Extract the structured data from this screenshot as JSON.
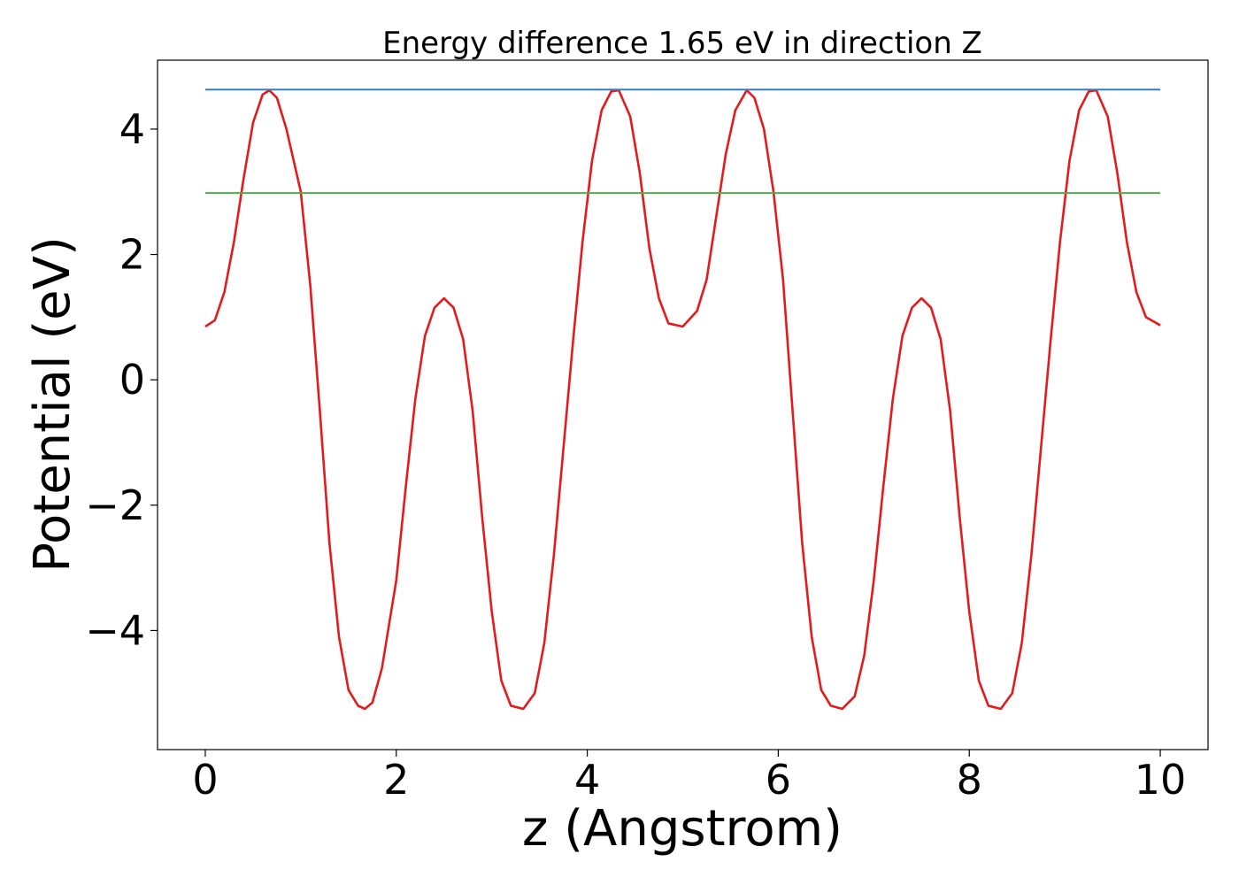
{
  "chart_data": {
    "type": "line",
    "title": "Energy difference 1.65 eV in direction Z",
    "xlabel": "z (Angstrom)",
    "ylabel": "Potential (eV)",
    "xlim": [
      -0.5,
      10.5
    ],
    "ylim": [
      -5.9,
      5.1
    ],
    "xticks": [
      0,
      2,
      4,
      6,
      8,
      10
    ],
    "xtick_labels": [
      "0",
      "2",
      "4",
      "6",
      "8",
      "10"
    ],
    "yticks": [
      4,
      2,
      0,
      -2,
      -4
    ],
    "ytick_labels": [
      "4",
      "2",
      "0",
      "−2",
      "−4"
    ],
    "grid": false,
    "legend": "none",
    "series": [
      {
        "color": "#e41a1c",
        "x": [
          0,
          0.1,
          0.2,
          0.3,
          0.4,
          0.5,
          0.6,
          0.67,
          0.75,
          0.85,
          1.0,
          1.1,
          1.2,
          1.3,
          1.4,
          1.5,
          1.6,
          1.67,
          1.75,
          1.85,
          2.0,
          2.1,
          2.2,
          2.3,
          2.4,
          2.5,
          2.6,
          2.7,
          2.8,
          2.9,
          3.0,
          3.1,
          3.2,
          3.33,
          3.45,
          3.55,
          3.65,
          3.75,
          3.85,
          3.95,
          4.05,
          4.15,
          4.25,
          4.33,
          4.45,
          4.55,
          4.65,
          4.75,
          4.85,
          5.0,
          5.15,
          5.25,
          5.35,
          5.45,
          5.55,
          5.67,
          5.75,
          5.85,
          5.95,
          6.05,
          6.15,
          6.25,
          6.35,
          6.45,
          6.55,
          6.67,
          6.8,
          6.9,
          7.0,
          7.1,
          7.2,
          7.3,
          7.4,
          7.5,
          7.6,
          7.7,
          7.8,
          7.9,
          8.0,
          8.1,
          8.2,
          8.33,
          8.45,
          8.55,
          8.65,
          8.75,
          8.85,
          8.95,
          9.05,
          9.15,
          9.25,
          9.33,
          9.45,
          9.55,
          9.65,
          9.75,
          9.85,
          10.0
        ],
        "y": [
          0.85,
          0.95,
          1.4,
          2.2,
          3.2,
          4.1,
          4.55,
          4.62,
          4.5,
          4.0,
          3.0,
          1.5,
          -0.5,
          -2.6,
          -4.1,
          -4.95,
          -5.2,
          -5.25,
          -5.15,
          -4.6,
          -3.2,
          -1.7,
          -0.3,
          0.7,
          1.15,
          1.3,
          1.15,
          0.65,
          -0.5,
          -2.2,
          -3.7,
          -4.8,
          -5.2,
          -5.25,
          -5.0,
          -4.2,
          -2.8,
          -1.1,
          0.6,
          2.2,
          3.5,
          4.3,
          4.6,
          4.62,
          4.2,
          3.3,
          2.1,
          1.3,
          0.9,
          0.85,
          1.1,
          1.6,
          2.6,
          3.6,
          4.3,
          4.62,
          4.5,
          4.0,
          3.0,
          1.6,
          -0.5,
          -2.6,
          -4.1,
          -4.95,
          -5.2,
          -5.25,
          -5.05,
          -4.4,
          -3.2,
          -1.7,
          -0.3,
          0.7,
          1.15,
          1.3,
          1.15,
          0.65,
          -0.5,
          -2.2,
          -3.7,
          -4.8,
          -5.2,
          -5.25,
          -5.0,
          -4.2,
          -2.8,
          -1.1,
          0.6,
          2.2,
          3.5,
          4.3,
          4.6,
          4.62,
          4.2,
          3.3,
          2.2,
          1.4,
          1.0,
          0.87
        ]
      },
      {
        "color": "#377eb8",
        "x": [
          0,
          10
        ],
        "y": [
          4.63,
          4.63
        ]
      },
      {
        "color": "#4daf4a",
        "x": [
          0,
          10
        ],
        "y": [
          2.98,
          2.98
        ]
      }
    ]
  }
}
